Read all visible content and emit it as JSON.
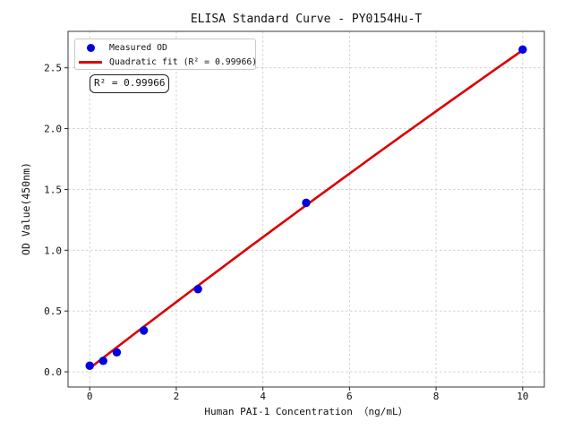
{
  "chart_data": {
    "type": "scatter",
    "title": "ELISA Standard Curve - PY0154Hu-T",
    "xlabel": "Human PAI-1 Concentration （ng/mL）",
    "ylabel": "OD Value(450nm)",
    "series": [
      {
        "name": "Measured OD",
        "x": [
          0,
          0.312,
          0.625,
          1.25,
          2.5,
          5,
          10
        ],
        "y": [
          0.05,
          0.09,
          0.16,
          0.34,
          0.68,
          1.39,
          2.65
        ]
      },
      {
        "name": "Quadratic fit (R² = 0.99966)",
        "fit_coefficients": {
          "a": -0.0013,
          "b": 0.2745,
          "c": 0.03
        }
      }
    ],
    "r_squared": "0.99966",
    "annotation": "R² = 0.99966",
    "legend": {
      "position": "upper left",
      "entries": [
        "Measured OD",
        "Quadratic fit (R² = 0.99966)"
      ]
    },
    "xticks": [
      0,
      2,
      4,
      6,
      8,
      10
    ],
    "yticks": [
      0.0,
      0.5,
      1.0,
      1.5,
      2.0,
      2.5
    ],
    "xtick_labels": [
      "0",
      "2",
      "4",
      "6",
      "8",
      "10"
    ],
    "ytick_labels": [
      "0.0",
      "0.5",
      "1.0",
      "1.5",
      "2.0",
      "2.5"
    ],
    "xlim": [
      -0.5,
      10.5
    ],
    "ylim": [
      -0.125,
      2.8
    ],
    "grid": "dashed",
    "colors": {
      "points": "#0000e0",
      "fit_line": "#dd0000",
      "grid": "#cccccc",
      "spine": "#3a3a3a"
    }
  }
}
